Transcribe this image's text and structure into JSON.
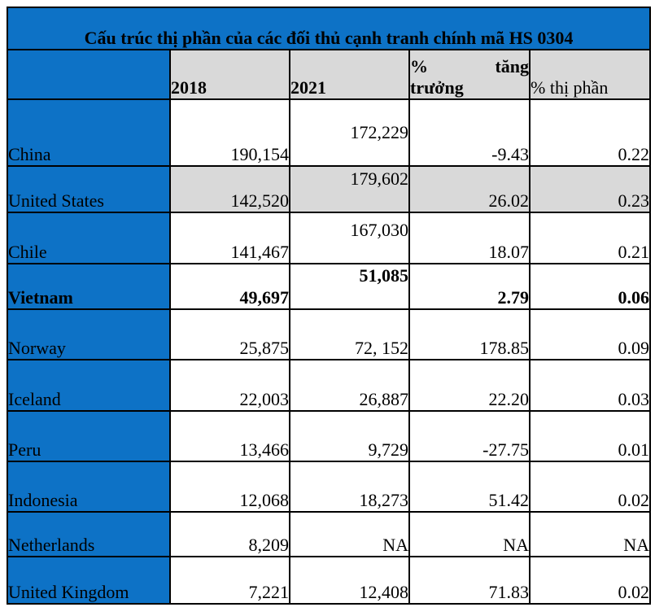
{
  "table": {
    "title": "Cấu trúc thị phần của các đối thủ cạnh tranh chính mã HS 0304",
    "headers": {
      "country": "",
      "y2018": "2018",
      "y2021": "2021",
      "growth_l1a": "%",
      "growth_l1b": "tăng",
      "growth_l2": "trưởng",
      "share": "% thị phần"
    },
    "rows": [
      {
        "country": "China",
        "v2018": "190,154",
        "v2021": "172,229",
        "growth": "-9.43",
        "share": "0.22",
        "raised2021": true,
        "shaded": false,
        "bold": false
      },
      {
        "country": "United States",
        "v2018": "142,520",
        "v2021": "179,602",
        "growth": "26.02",
        "share": "0.23",
        "raised2021": true,
        "shaded": true,
        "bold": false
      },
      {
        "country": "Chile",
        "v2018": "141,467",
        "v2021": "167,030",
        "growth": "18.07",
        "share": "0.21",
        "raised2021": true,
        "shaded": false,
        "bold": false
      },
      {
        "country": "Vietnam",
        "v2018": "49,697",
        "v2021": "51,085",
        "growth": "2.79",
        "share": "0.06",
        "raised2021": true,
        "shaded": false,
        "bold": true
      },
      {
        "country": "Norway",
        "v2018": "25,875",
        "v2021": "72, 152",
        "growth": "178.85",
        "share": "0.09",
        "raised2021": false,
        "shaded": false,
        "bold": false
      },
      {
        "country": "Iceland",
        "v2018": "22,003",
        "v2021": "26,887",
        "growth": "22.20",
        "share": "0.03",
        "raised2021": false,
        "shaded": false,
        "bold": false
      },
      {
        "country": "Peru",
        "v2018": "13,466",
        "v2021": "9,729",
        "growth": "-27.75",
        "share": "0.01",
        "raised2021": false,
        "shaded": false,
        "bold": false
      },
      {
        "country": "Indonesia",
        "v2018": "12,068",
        "v2021": "18,273",
        "growth": "51.42",
        "share": "0.02",
        "raised2021": false,
        "shaded": false,
        "bold": false
      },
      {
        "country": "Netherlands",
        "v2018": "8,209",
        "v2021": "NA",
        "growth": "NA",
        "share": "NA",
        "raised2021": false,
        "shaded": false,
        "bold": false
      },
      {
        "country": "United Kingdom",
        "v2018": "7,221",
        "v2021": "12,408",
        "growth": "71.83",
        "share": "0.02",
        "raised2021": false,
        "shaded": false,
        "bold": false
      }
    ]
  },
  "colors": {
    "accent_blue": "#0d72c6",
    "shaded_gray": "#d9d9d9",
    "border_black": "#000000",
    "text_black": "#000000"
  }
}
